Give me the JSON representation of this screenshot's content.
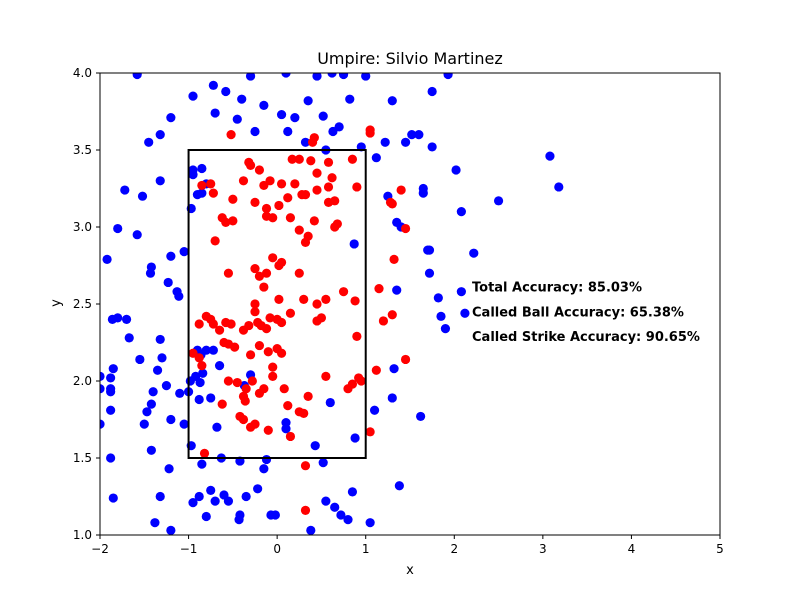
{
  "chart_data": {
    "type": "scatter",
    "title": "Umpire: Silvio Martinez",
    "xlabel": "x",
    "ylabel": "y",
    "xlim": [
      -2,
      5
    ],
    "ylim": [
      1.0,
      4.0
    ],
    "xticks": [
      "−2",
      "−1",
      "0",
      "1",
      "2",
      "3",
      "4",
      "5"
    ],
    "xtick_values": [
      -2,
      -1,
      0,
      1,
      2,
      3,
      4,
      5
    ],
    "yticks": [
      "1.0",
      "1.5",
      "2.0",
      "2.5",
      "3.0",
      "3.5",
      "4.0"
    ],
    "ytick_values": [
      1.0,
      1.5,
      2.0,
      2.5,
      3.0,
      3.5,
      4.0
    ],
    "grid": false,
    "strike_zone": {
      "x": [
        -1,
        1
      ],
      "y": [
        1.5,
        3.5
      ]
    },
    "annotations": [
      "Total Accuracy: 85.03%",
      "Called Ball Accuracy: 65.38%",
      "Called Strike Accuracy: 90.65%"
    ],
    "colors": {
      "blue": "#0000ff",
      "red": "#ff0000",
      "zone": "#000000"
    },
    "series": [
      {
        "color": "#0000ff",
        "points": [
          [
            -1.58,
            3.99
          ],
          [
            -1.2,
            3.71
          ],
          [
            -0.95,
            3.85
          ],
          [
            -0.72,
            3.92
          ],
          [
            -0.3,
            3.98
          ],
          [
            0.1,
            4.0
          ],
          [
            0.45,
            3.98
          ],
          [
            0.62,
            4.0
          ],
          [
            0.75,
            3.99
          ],
          [
            1.0,
            3.98
          ],
          [
            -0.58,
            3.88
          ],
          [
            -0.4,
            3.83
          ],
          [
            -0.15,
            3.79
          ],
          [
            0.05,
            3.73
          ],
          [
            0.2,
            3.71
          ],
          [
            0.35,
            3.82
          ],
          [
            0.52,
            3.72
          ],
          [
            0.7,
            3.65
          ],
          [
            0.82,
            3.83
          ],
          [
            1.3,
            3.82
          ],
          [
            1.12,
            3.45
          ],
          [
            1.22,
            3.55
          ],
          [
            1.45,
            3.55
          ],
          [
            1.52,
            3.6
          ],
          [
            1.75,
            3.88
          ],
          [
            1.93,
            3.99
          ],
          [
            -1.32,
            3.6
          ],
          [
            -1.45,
            3.55
          ],
          [
            -0.7,
            3.74
          ],
          [
            -0.45,
            3.7
          ],
          [
            -0.25,
            3.62
          ],
          [
            0.12,
            3.62
          ],
          [
            0.32,
            3.55
          ],
          [
            0.63,
            3.62
          ],
          [
            0.55,
            3.5
          ],
          [
            0.95,
            3.52
          ],
          [
            -1.72,
            3.24
          ],
          [
            -1.52,
            3.2
          ],
          [
            -1.32,
            3.3
          ],
          [
            -1.8,
            2.99
          ],
          [
            -1.58,
            2.95
          ],
          [
            -1.92,
            2.79
          ],
          [
            -1.2,
            2.81
          ],
          [
            -1.05,
            2.84
          ],
          [
            -1.42,
            2.74
          ],
          [
            -1.43,
            2.7
          ],
          [
            -1.23,
            2.64
          ],
          [
            -1.13,
            2.58
          ],
          [
            -1.11,
            2.55
          ],
          [
            -1.86,
            2.4
          ],
          [
            -1.8,
            2.41
          ],
          [
            -1.67,
            2.28
          ],
          [
            -1.32,
            2.27
          ],
          [
            -1.3,
            2.15
          ],
          [
            -1.25,
            1.97
          ],
          [
            -1.35,
            2.07
          ],
          [
            -1.4,
            1.93
          ],
          [
            -1.47,
            1.8
          ],
          [
            -1.5,
            1.72
          ],
          [
            -1.42,
            1.85
          ],
          [
            -1.2,
            1.75
          ],
          [
            -1.05,
            1.72
          ],
          [
            -1.1,
            1.92
          ],
          [
            -1.0,
            1.93
          ],
          [
            -1.88,
            1.95
          ],
          [
            -1.85,
            2.08
          ],
          [
            -1.88,
            2.02
          ],
          [
            -1.88,
            1.93
          ],
          [
            -1.88,
            1.81
          ],
          [
            -2.0,
            2.03
          ],
          [
            -2.0,
            1.95
          ],
          [
            -2.0,
            1.72
          ],
          [
            -1.88,
            1.5
          ],
          [
            -1.42,
            1.55
          ],
          [
            -1.32,
            1.25
          ],
          [
            -1.38,
            1.08
          ],
          [
            -1.2,
            1.03
          ],
          [
            -1.22,
            1.43
          ],
          [
            -1.85,
            1.24
          ],
          [
            -0.95,
            1.21
          ],
          [
            -0.88,
            1.25
          ],
          [
            -0.7,
            1.22
          ],
          [
            -0.6,
            1.26
          ],
          [
            -0.55,
            1.22
          ],
          [
            -0.42,
            1.13
          ],
          [
            -0.43,
            1.1
          ],
          [
            -0.22,
            1.3
          ],
          [
            -0.07,
            1.13
          ],
          [
            -0.02,
            1.13
          ],
          [
            0.38,
            1.03
          ],
          [
            0.8,
            1.1
          ],
          [
            1.05,
            1.08
          ],
          [
            0.72,
            1.13
          ],
          [
            0.55,
            1.22
          ],
          [
            0.65,
            1.18
          ],
          [
            0.85,
            1.28
          ],
          [
            0.52,
            1.47
          ],
          [
            0.43,
            1.58
          ],
          [
            0.88,
            1.63
          ],
          [
            -0.15,
            1.43
          ],
          [
            -0.12,
            1.49
          ],
          [
            -0.85,
            1.46
          ],
          [
            -0.75,
            1.29
          ],
          [
            -0.8,
            1.12
          ],
          [
            -0.35,
            1.25
          ],
          [
            -0.63,
            1.5
          ],
          [
            -0.42,
            1.48
          ],
          [
            -0.68,
            1.7
          ],
          [
            0.6,
            1.86
          ],
          [
            1.1,
            1.81
          ],
          [
            1.3,
            1.89
          ],
          [
            1.32,
            2.08
          ],
          [
            1.38,
            1.32
          ],
          [
            1.62,
            1.77
          ],
          [
            1.72,
            2.7
          ],
          [
            1.82,
            2.54
          ],
          [
            1.85,
            2.42
          ],
          [
            1.9,
            2.34
          ],
          [
            2.08,
            2.58
          ],
          [
            2.12,
            2.44
          ],
          [
            1.7,
            2.85
          ],
          [
            1.72,
            2.85
          ],
          [
            2.22,
            2.83
          ],
          [
            2.08,
            3.1
          ],
          [
            2.02,
            3.37
          ],
          [
            2.5,
            3.17
          ],
          [
            3.08,
            3.46
          ],
          [
            3.18,
            3.26
          ],
          [
            1.65,
            3.22
          ],
          [
            1.65,
            3.25
          ],
          [
            1.75,
            3.52
          ],
          [
            1.6,
            3.6
          ],
          [
            1.25,
            3.2
          ],
          [
            1.35,
            3.03
          ],
          [
            1.4,
            3.0
          ],
          [
            1.35,
            2.59
          ],
          [
            0.87,
            2.89
          ],
          [
            -0.95,
            3.37
          ],
          [
            -0.95,
            3.34
          ],
          [
            -0.85,
            3.38
          ],
          [
            -0.8,
            3.28
          ],
          [
            -0.97,
            3.12
          ],
          [
            -0.85,
            3.22
          ],
          [
            -0.9,
            3.21
          ],
          [
            -0.9,
            2.2
          ],
          [
            -0.86,
            2.17
          ],
          [
            -0.8,
            2.2
          ],
          [
            -0.98,
            2.0
          ],
          [
            -0.87,
            1.99
          ],
          [
            -0.72,
            2.2
          ],
          [
            -0.65,
            2.1
          ],
          [
            -0.92,
            2.03
          ],
          [
            -0.84,
            2.05
          ],
          [
            -0.88,
            1.88
          ],
          [
            -0.75,
            1.89
          ],
          [
            -0.3,
            2.04
          ],
          [
            -0.37,
            1.97
          ],
          [
            0.1,
            1.73
          ],
          [
            0.1,
            1.69
          ],
          [
            -0.97,
            1.58
          ],
          [
            -1.55,
            2.14
          ],
          [
            -1.7,
            2.4
          ]
        ]
      },
      {
        "color": "#ff0000",
        "points": [
          [
            -0.52,
            3.6
          ],
          [
            0.42,
            3.58
          ],
          [
            0.4,
            3.55
          ],
          [
            1.05,
            3.63
          ],
          [
            1.05,
            3.61
          ],
          [
            -0.32,
            3.42
          ],
          [
            -0.3,
            3.4
          ],
          [
            -0.2,
            3.37
          ],
          [
            -0.08,
            3.3
          ],
          [
            0.17,
            3.44
          ],
          [
            0.25,
            3.44
          ],
          [
            0.38,
            3.43
          ],
          [
            0.58,
            3.42
          ],
          [
            0.85,
            3.44
          ],
          [
            -0.75,
            3.28
          ],
          [
            -0.72,
            3.22
          ],
          [
            -0.85,
            3.27
          ],
          [
            -0.5,
            3.18
          ],
          [
            -0.38,
            3.3
          ],
          [
            -0.15,
            3.27
          ],
          [
            0.05,
            3.28
          ],
          [
            0.2,
            3.28
          ],
          [
            0.28,
            3.21
          ],
          [
            0.32,
            3.21
          ],
          [
            0.45,
            3.35
          ],
          [
            0.62,
            3.32
          ],
          [
            0.45,
            3.24
          ],
          [
            0.58,
            3.26
          ],
          [
            0.65,
            3.17
          ],
          [
            0.9,
            3.26
          ],
          [
            -0.62,
            3.06
          ],
          [
            -0.58,
            3.03
          ],
          [
            -0.5,
            3.04
          ],
          [
            -0.25,
            3.16
          ],
          [
            -0.12,
            3.12
          ],
          [
            -0.12,
            3.07
          ],
          [
            -0.05,
            3.06
          ],
          [
            0.02,
            3.14
          ],
          [
            0.12,
            3.19
          ],
          [
            0.15,
            3.06
          ],
          [
            0.25,
            2.98
          ],
          [
            0.32,
            2.9
          ],
          [
            0.35,
            2.94
          ],
          [
            0.42,
            3.04
          ],
          [
            0.58,
            3.16
          ],
          [
            0.65,
            3.0
          ],
          [
            -0.7,
            2.91
          ],
          [
            -0.55,
            2.7
          ],
          [
            -0.25,
            2.73
          ],
          [
            -0.2,
            2.68
          ],
          [
            -0.12,
            2.7
          ],
          [
            -0.05,
            2.8
          ],
          [
            0.02,
            2.75
          ],
          [
            0.05,
            2.77
          ],
          [
            0.25,
            2.7
          ],
          [
            -0.15,
            2.61
          ],
          [
            -0.25,
            2.5
          ],
          [
            0.02,
            2.53
          ],
          [
            0.15,
            2.44
          ],
          [
            0.3,
            2.53
          ],
          [
            0.45,
            2.5
          ],
          [
            0.55,
            2.53
          ],
          [
            0.75,
            2.58
          ],
          [
            0.88,
            2.52
          ],
          [
            -0.8,
            2.42
          ],
          [
            -0.88,
            2.37
          ],
          [
            -0.75,
            2.4
          ],
          [
            -0.72,
            2.37
          ],
          [
            -0.65,
            2.33
          ],
          [
            -0.58,
            2.38
          ],
          [
            -0.52,
            2.37
          ],
          [
            -0.48,
            2.22
          ],
          [
            -0.38,
            2.33
          ],
          [
            -0.32,
            2.36
          ],
          [
            -0.22,
            2.38
          ],
          [
            -0.18,
            2.36
          ],
          [
            -0.12,
            2.34
          ],
          [
            -0.08,
            2.41
          ],
          [
            0.0,
            2.4
          ],
          [
            0.05,
            2.38
          ],
          [
            0.45,
            2.39
          ],
          [
            0.5,
            2.41
          ],
          [
            -0.95,
            2.18
          ],
          [
            -0.88,
            2.15
          ],
          [
            -0.85,
            2.1
          ],
          [
            -0.6,
            2.25
          ],
          [
            -0.55,
            2.24
          ],
          [
            -0.3,
            2.17
          ],
          [
            -0.2,
            2.23
          ],
          [
            -0.1,
            2.19
          ],
          [
            0.0,
            2.21
          ],
          [
            0.05,
            2.18
          ],
          [
            -0.05,
            2.09
          ],
          [
            -0.55,
            2.0
          ],
          [
            -0.45,
            1.99
          ],
          [
            -0.35,
            1.95
          ],
          [
            -0.28,
            2.0
          ],
          [
            -0.2,
            1.92
          ],
          [
            -0.15,
            1.95
          ],
          [
            -0.05,
            2.03
          ],
          [
            0.08,
            1.95
          ],
          [
            0.12,
            1.84
          ],
          [
            0.55,
            2.03
          ],
          [
            0.8,
            1.95
          ],
          [
            0.85,
            1.98
          ],
          [
            0.92,
            2.02
          ],
          [
            -0.62,
            1.85
          ],
          [
            -0.38,
            1.9
          ],
          [
            -0.36,
            1.87
          ],
          [
            -0.42,
            1.77
          ],
          [
            -0.38,
            1.75
          ],
          [
            -0.3,
            1.7
          ],
          [
            -0.25,
            1.72
          ],
          [
            -0.1,
            1.68
          ],
          [
            0.15,
            1.64
          ],
          [
            0.25,
            1.8
          ],
          [
            0.3,
            1.79
          ],
          [
            0.35,
            1.9
          ],
          [
            -0.82,
            1.53
          ],
          [
            0.32,
            1.45
          ],
          [
            0.32,
            1.16
          ],
          [
            1.05,
            1.67
          ],
          [
            1.12,
            2.07
          ],
          [
            1.2,
            2.39
          ],
          [
            1.3,
            2.43
          ],
          [
            1.32,
            2.79
          ],
          [
            1.45,
            2.14
          ],
          [
            1.15,
            2.6
          ],
          [
            1.45,
            2.99
          ],
          [
            1.28,
            3.16
          ],
          [
            1.3,
            3.15
          ],
          [
            1.4,
            3.24
          ],
          [
            0.68,
            3.02
          ],
          [
            0.9,
            2.29
          ],
          [
            0.95,
            2.0
          ],
          [
            -0.25,
            2.45
          ]
        ]
      }
    ]
  }
}
